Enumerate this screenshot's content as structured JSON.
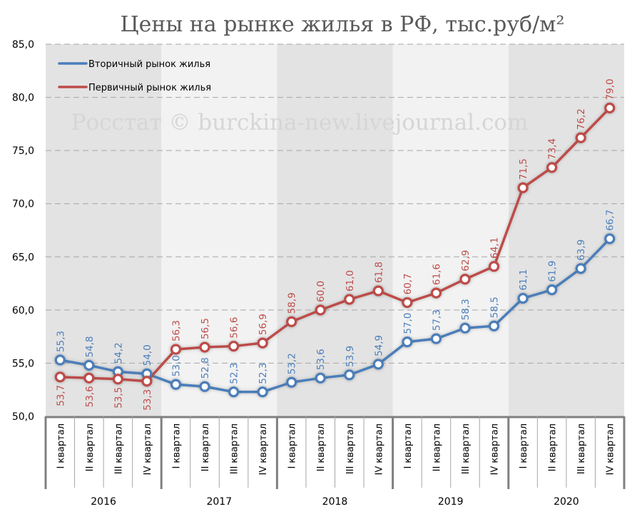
{
  "chart_data": {
    "type": "line",
    "title": "Цены на рынке жилья в РФ, тыс.руб/м²",
    "watermark": "Росстат © burckina-new.livejournal.com",
    "ylim": [
      50,
      85
    ],
    "yticks": [
      "50,0",
      "55,0",
      "60,0",
      "65,0",
      "70,0",
      "75,0",
      "80,0",
      "85,0"
    ],
    "grid": "horizontal dashed",
    "legend_position": "top-left",
    "years": [
      "2016",
      "2017",
      "2018",
      "2019",
      "2020"
    ],
    "quarters": [
      "I квартал",
      "II квартал",
      "III квартал",
      "IV квартал"
    ],
    "band_colors": [
      "#e3e3e3",
      "#f2f2f2"
    ],
    "series": [
      {
        "name": "Вторичный рынок жилья",
        "color": "#4a7ebb",
        "values": [
          55.3,
          54.8,
          54.2,
          54.0,
          53.0,
          52.8,
          52.3,
          52.3,
          53.2,
          53.6,
          53.9,
          54.9,
          57.0,
          57.3,
          58.3,
          58.5,
          61.1,
          61.9,
          63.9,
          66.7
        ],
        "labels": [
          "55,3",
          "54,8",
          "54,2",
          "54,0",
          "53,0",
          "52,8",
          "52,3",
          "52,3",
          "53,2",
          "53,6",
          "53,9",
          "54,9",
          "57,0",
          "57,3",
          "58,3",
          "58,5",
          "61,1",
          "61,9",
          "63,9",
          "66,7"
        ]
      },
      {
        "name": "Первичный рынок жилья",
        "color": "#be4b48",
        "values": [
          53.7,
          53.6,
          53.5,
          53.3,
          56.3,
          56.5,
          56.6,
          56.9,
          58.9,
          60.0,
          61.0,
          61.8,
          60.7,
          61.6,
          62.9,
          64.1,
          71.5,
          73.4,
          76.2,
          79.0
        ],
        "labels": [
          "53,7",
          "53,6",
          "53,5",
          "53,3",
          "56,3",
          "56,5",
          "56,6",
          "56,9",
          "58,9",
          "60,0",
          "61,0",
          "61,8",
          "60,7",
          "61,6",
          "62,9",
          "64,1",
          "71,5",
          "73,4",
          "76,2",
          "79,0"
        ]
      }
    ]
  }
}
